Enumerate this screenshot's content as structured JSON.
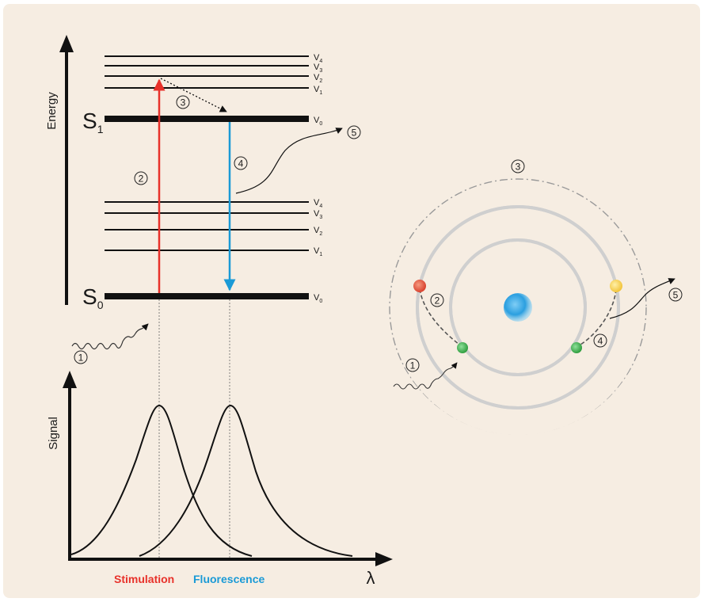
{
  "energy_diagram": {
    "y_axis_label": "Energy",
    "s1_state": {
      "letter": "S",
      "sub": "1"
    },
    "s0_state": {
      "letter": "S",
      "sub": "0"
    },
    "s1_levels": [
      {
        "letter": "V",
        "sub": "4"
      },
      {
        "letter": "V",
        "sub": "3"
      },
      {
        "letter": "V",
        "sub": "2"
      },
      {
        "letter": "V",
        "sub": "1"
      },
      {
        "letter": "V",
        "sub": "0"
      }
    ],
    "s0_levels": [
      {
        "letter": "V",
        "sub": "4"
      },
      {
        "letter": "V",
        "sub": "3"
      },
      {
        "letter": "V",
        "sub": "2"
      },
      {
        "letter": "V",
        "sub": "1"
      },
      {
        "letter": "V",
        "sub": "0"
      }
    ],
    "steps": [
      "1",
      "2",
      "3",
      "4",
      "5"
    ]
  },
  "spectrum": {
    "y_axis_label": "Signal",
    "x_axis_label": "λ",
    "stimulation_label": "Stimulation",
    "fluorescence_label": "Fluorescence"
  },
  "atom_model": {
    "steps": [
      "1",
      "2",
      "3",
      "4",
      "5"
    ]
  },
  "colors": {
    "background": "#f6ede2",
    "stimulation": "#e8312a",
    "fluorescence": "#1a9ad6",
    "ring": "#cfcfcf",
    "nucleus": "#2b9fe0",
    "electron_ground": "#2f9e3f",
    "electron_red": "#d9412e",
    "electron_yellow": "#f2c43b"
  }
}
